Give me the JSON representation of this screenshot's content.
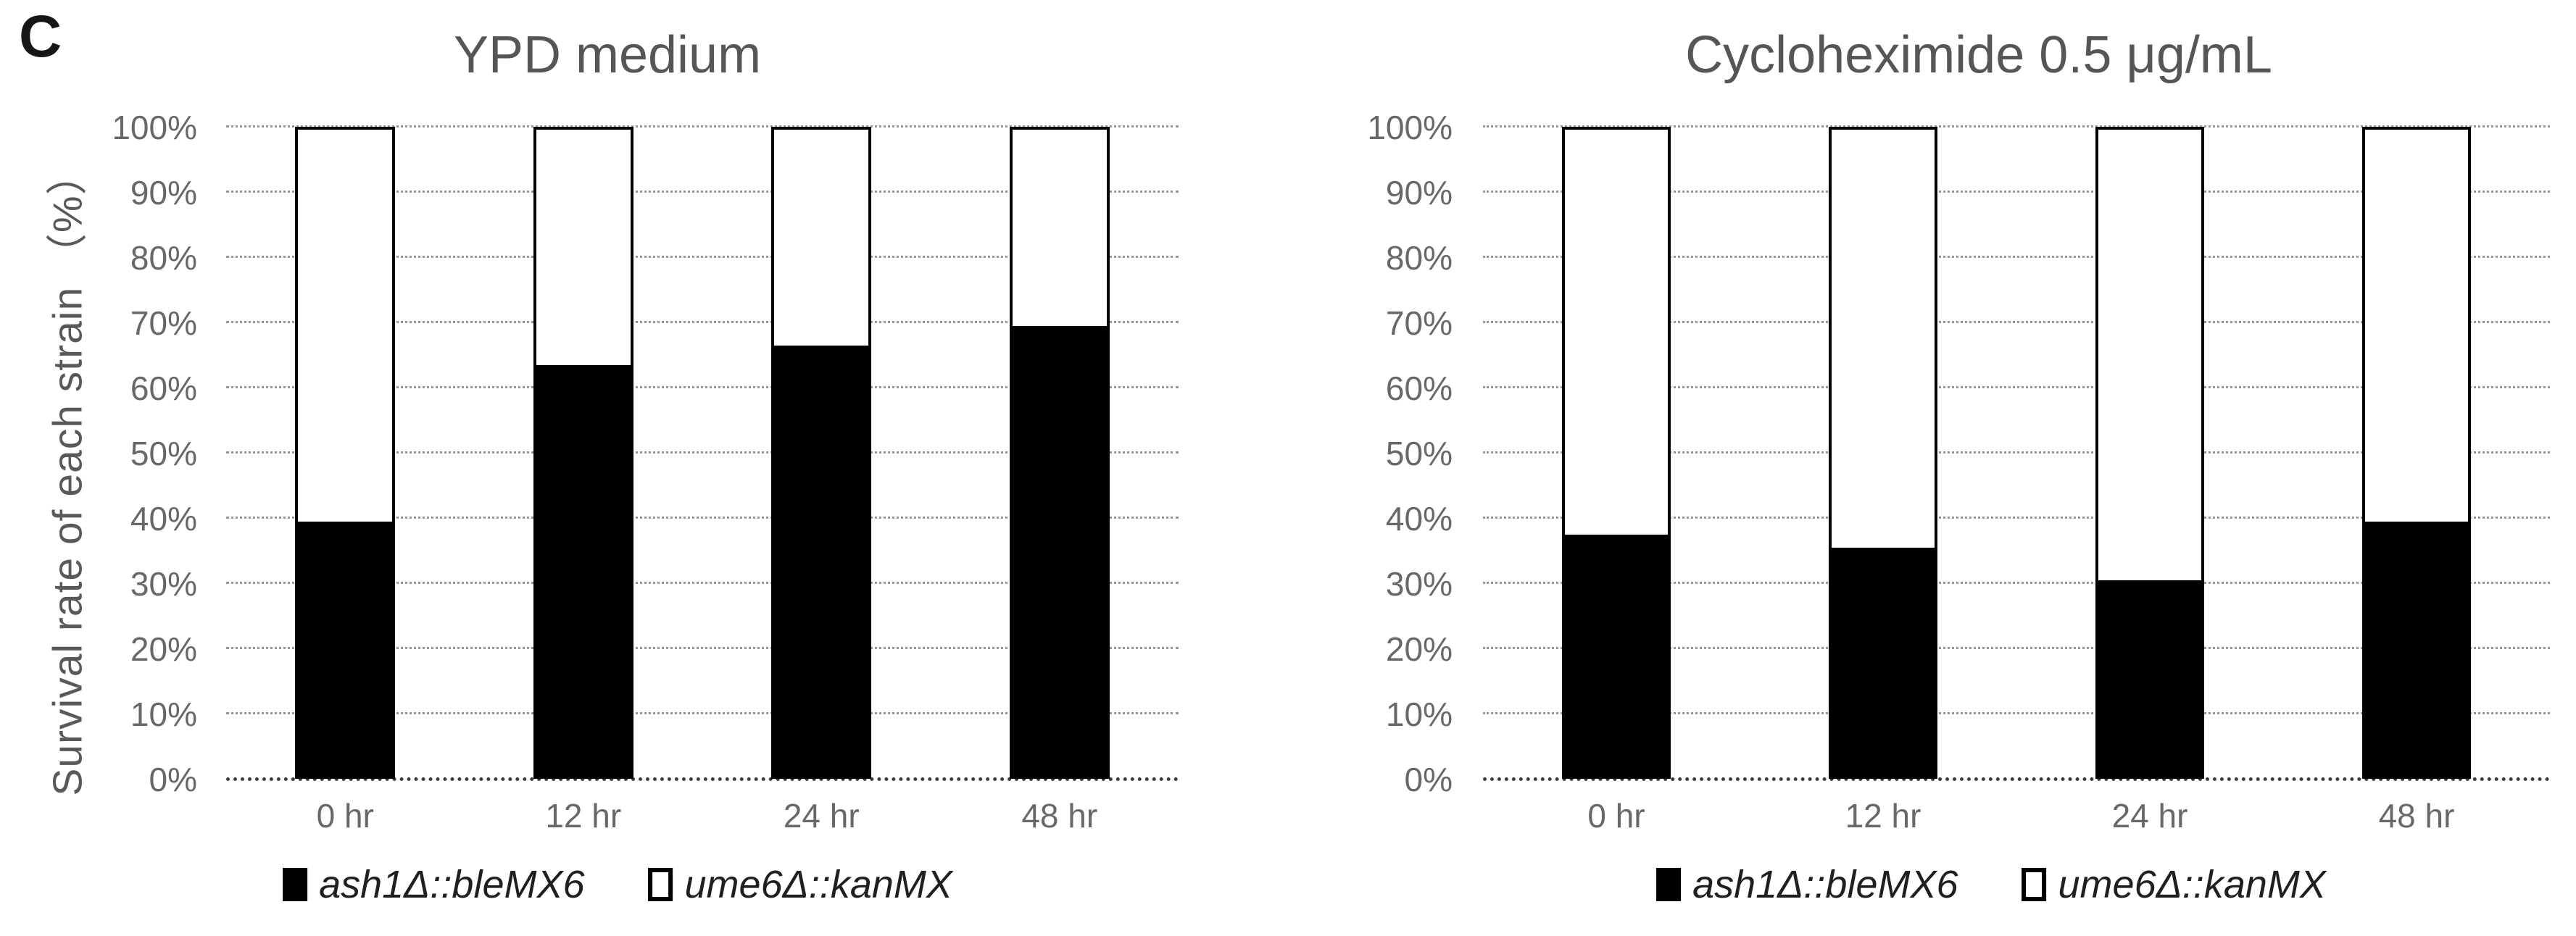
{
  "panel_label": "C",
  "colors": {
    "series_ash1": "#000000",
    "series_ume6": "#ffffff",
    "bar_outline": "#000000",
    "gridline": "#969696",
    "axis_text": "#686868",
    "title_text": "#565656"
  },
  "chart_data": [
    {
      "type": "bar",
      "stacked": true,
      "title": "YPD medium",
      "categories": [
        "0 hr",
        "12 hr",
        "24 hr",
        "48 hr"
      ],
      "series": [
        {
          "name": "ash1Δ::bleMX6",
          "color": "#000000",
          "values": [
            39,
            63,
            66,
            69
          ]
        },
        {
          "name": "ume6Δ::kanMX",
          "color": "#ffffff",
          "values": [
            61,
            37,
            34,
            31
          ]
        }
      ],
      "xlabel": "",
      "ylabel": "Survival rate of each strain （%）",
      "ylim": [
        0,
        100
      ],
      "yticks": [
        "0%",
        "10%",
        "20%",
        "30%",
        "40%",
        "50%",
        "60%",
        "70%",
        "80%",
        "90%",
        "100%"
      ],
      "grid": true,
      "legend_position": "bottom"
    },
    {
      "type": "bar",
      "stacked": true,
      "title": "Cycloheximide 0.5 μg/mL",
      "categories": [
        "0 hr",
        "12 hr",
        "24 hr",
        "48 hr"
      ],
      "series": [
        {
          "name": "ash1Δ::bleMX6",
          "color": "#000000",
          "values": [
            37,
            35,
            30,
            39
          ]
        },
        {
          "name": "ume6Δ::kanMX",
          "color": "#ffffff",
          "values": [
            63,
            65,
            70,
            61
          ]
        }
      ],
      "xlabel": "",
      "ylabel": "",
      "ylim": [
        0,
        100
      ],
      "yticks": [
        "0%",
        "10%",
        "20%",
        "30%",
        "40%",
        "50%",
        "60%",
        "70%",
        "80%",
        "90%",
        "100%"
      ],
      "grid": true,
      "legend_position": "bottom"
    }
  ]
}
